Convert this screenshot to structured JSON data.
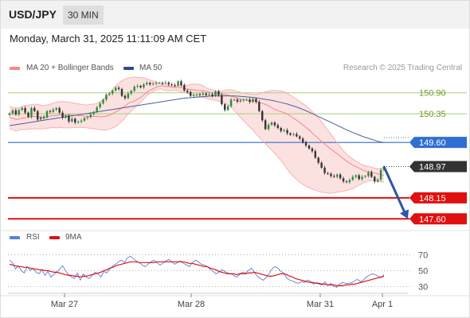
{
  "header": {
    "pair": "USD/JPY",
    "timeframe": "30 MIN"
  },
  "datetime": "Monday, March 31, 2025 11:11:09 AM CET",
  "legend": {
    "bb": {
      "label": "MA 20 + Bollinger Bands",
      "color": "#f08a8a"
    },
    "ma50": {
      "label": "MA 50",
      "color": "#2b4c8c"
    },
    "rsi": {
      "label": "RSI",
      "color": "#5b7fdd"
    },
    "rsi_ma": {
      "label": "9MA",
      "color": "#e01010"
    }
  },
  "credit": "Research © 2025 Trading Central",
  "chart_data": [
    {
      "type": "candlestick",
      "instrument": "USD/JPY",
      "interval": "30 MIN",
      "x_ticks": [
        "Mar 27",
        "Mar 28",
        "Mar 31",
        "Apr 1"
      ],
      "ylim": [
        147.44,
        151.31
      ],
      "levels": [
        {
          "value": 150.9,
          "label": "150.90",
          "kind": "resistance",
          "color": "#a8cf7a",
          "text_color": "#6b9c2a"
        },
        {
          "value": 150.35,
          "label": "150.35",
          "kind": "resistance",
          "color": "#a8cf7a",
          "text_color": "#6b9c2a"
        },
        {
          "value": 149.6,
          "label": "149.60",
          "kind": "pivot",
          "color": "#2f6fd1",
          "fill": "#2f6fd1"
        },
        {
          "value": 148.15,
          "label": "148.15",
          "kind": "support",
          "color": "#e01010",
          "fill": "#e01010"
        },
        {
          "value": 147.6,
          "label": "147.60",
          "kind": "support",
          "color": "#e01010",
          "fill": "#e01010"
        }
      ],
      "last_price": {
        "value": 148.97,
        "label": "148.97",
        "fill": "#333333"
      },
      "forecast_arrow": {
        "from": 148.97,
        "to": 147.6,
        "color": "#2c56a6"
      },
      "candle_colors": {
        "up": "#2e8b3a",
        "down": "#333333"
      },
      "price": [
        150.36,
        150.44,
        150.33,
        150.45,
        150.5,
        150.38,
        150.27,
        150.5,
        150.42,
        150.2,
        150.26,
        150.25,
        150.42,
        150.4,
        150.46,
        150.5,
        150.38,
        150.25,
        150.3,
        150.15,
        150.22,
        150.12,
        150.14,
        150.17,
        150.24,
        150.26,
        150.34,
        150.4,
        150.52,
        150.62,
        150.72,
        150.85,
        150.88,
        150.96,
        151.03,
        151.0,
        150.82,
        150.76,
        150.88,
        150.95,
        151.06,
        151.08,
        151.04,
        151.12,
        151.16,
        151.12,
        151.14,
        151.16,
        151.16,
        151.15,
        151.17,
        151.12,
        151.1,
        151.09,
        151.2,
        151.1,
        150.96,
        150.92,
        150.82,
        150.84,
        150.86,
        150.85,
        150.88,
        150.84,
        150.86,
        150.82,
        150.94,
        150.84,
        150.6,
        150.45,
        150.55,
        150.72,
        150.72,
        150.67,
        150.7,
        150.72,
        150.72,
        150.66,
        150.74,
        150.66,
        150.42,
        150.18,
        149.95,
        150.06,
        150.12,
        150.05,
        149.98,
        149.9,
        149.92,
        149.84,
        149.8,
        149.82,
        149.76,
        149.7,
        149.6,
        149.52,
        149.44,
        149.37,
        149.2,
        149.07,
        148.94,
        148.8,
        148.78,
        148.72,
        148.7,
        148.76,
        148.66,
        148.58,
        148.56,
        148.62,
        148.7,
        148.74,
        148.64,
        148.7,
        148.72,
        148.82,
        148.7,
        148.58,
        148.63,
        148.88,
        148.97
      ],
      "ma20": [
        150.26,
        150.23,
        150.2,
        150.22,
        150.24,
        150.25,
        150.26,
        150.28,
        150.28,
        150.26,
        150.26,
        150.27,
        150.29,
        150.3,
        150.31,
        150.33,
        150.32,
        150.32,
        150.32,
        150.31,
        150.31,
        150.3,
        150.29,
        150.28,
        150.28,
        150.28,
        150.28,
        150.27,
        150.28,
        150.3,
        150.34,
        150.39,
        150.44,
        150.5,
        150.56,
        150.63,
        150.66,
        150.7,
        150.75,
        150.81,
        150.89,
        150.96,
        151.0,
        151.04,
        151.07,
        151.09,
        151.06,
        151.06,
        151.04,
        151.04,
        151.04,
        151.02,
        151.0,
        150.99,
        150.98,
        150.96,
        150.96,
        150.95,
        150.93,
        150.91,
        150.89,
        150.88,
        150.87,
        150.86,
        150.84,
        150.81,
        150.79,
        150.76,
        150.73,
        150.71,
        150.7,
        150.69,
        150.68,
        150.66,
        150.63,
        150.6,
        150.56,
        150.51,
        150.46,
        150.43,
        150.4,
        150.37,
        150.32,
        150.26,
        150.2,
        150.14,
        150.07,
        150.0,
        149.93,
        149.84,
        149.76,
        149.68,
        149.6,
        149.53,
        149.45,
        149.39,
        149.32,
        149.25,
        149.18,
        149.11,
        149.05,
        149.0,
        148.96,
        148.91,
        148.87,
        148.84,
        148.83,
        148.81,
        148.78,
        148.76,
        148.74
      ],
      "bb_upper": [
        150.54,
        150.52,
        150.5,
        150.51,
        150.55,
        150.57,
        150.58,
        150.6,
        150.6,
        150.58,
        150.56,
        150.58,
        150.6,
        150.63,
        150.66,
        150.67,
        150.67,
        150.66,
        150.65,
        150.63,
        150.62,
        150.6,
        150.59,
        150.58,
        150.6,
        150.6,
        150.63,
        150.67,
        150.75,
        150.82,
        150.92,
        151.04,
        151.13,
        151.2,
        151.25,
        151.28,
        151.3,
        151.31,
        151.3,
        151.3,
        151.28,
        151.26,
        151.22,
        151.2,
        151.16,
        151.14,
        151.12,
        151.1,
        151.08,
        151.07,
        151.08,
        151.1,
        151.1,
        151.1,
        151.13,
        151.13,
        151.12,
        151.1,
        151.05,
        151.0,
        150.98,
        150.95,
        150.93,
        150.94,
        150.97,
        150.98,
        150.97,
        150.95,
        150.92,
        150.9,
        150.88,
        150.87,
        150.86,
        150.86,
        150.87,
        150.9,
        150.93,
        150.95,
        150.96,
        150.96,
        150.95,
        150.94,
        150.9,
        150.85,
        150.8,
        150.74,
        150.67,
        150.61,
        150.55,
        150.47,
        150.39,
        150.3,
        150.2,
        150.08,
        149.96,
        149.85,
        149.73,
        149.6,
        149.49,
        149.38,
        149.29,
        149.21,
        149.15,
        149.09,
        149.04,
        149.0,
        148.98,
        148.96,
        148.93,
        148.91,
        148.92,
        148.95
      ],
      "bb_lower": [
        149.97,
        149.93,
        149.9,
        149.93,
        149.94,
        149.94,
        149.95,
        149.96,
        149.96,
        149.95,
        149.96,
        149.97,
        149.98,
        149.99,
        149.98,
        149.99,
        149.98,
        149.98,
        149.98,
        149.99,
        149.99,
        149.99,
        149.99,
        149.98,
        149.97,
        149.96,
        149.95,
        149.93,
        149.92,
        149.93,
        149.96,
        150.0,
        150.05,
        150.13,
        150.22,
        150.33,
        150.42,
        150.5,
        150.58,
        150.66,
        150.76,
        150.85,
        150.91,
        150.96,
        150.99,
        151.0,
        150.96,
        150.95,
        150.96,
        150.96,
        150.95,
        150.93,
        150.91,
        150.88,
        150.85,
        150.82,
        150.8,
        150.78,
        150.76,
        150.74,
        150.72,
        150.7,
        150.68,
        150.65,
        150.62,
        150.58,
        150.5,
        150.41,
        150.3,
        150.2,
        150.11,
        150.02,
        149.93,
        149.83,
        149.74,
        149.64,
        149.55,
        149.46,
        149.37,
        149.28,
        149.18,
        149.07,
        148.94,
        148.82,
        148.72,
        148.64,
        148.56,
        148.5,
        148.45,
        148.41,
        148.37,
        148.34,
        148.31,
        148.29,
        148.28,
        148.27,
        148.28,
        148.3,
        148.31,
        148.33,
        148.34,
        148.37,
        148.4,
        148.45,
        148.5,
        148.55,
        148.58,
        148.6,
        148.6,
        148.58,
        148.57,
        148.56
      ],
      "ma50": [
        150.04,
        150.06,
        150.08,
        150.1,
        150.12,
        150.14,
        150.16,
        150.18,
        150.2,
        150.22,
        150.24,
        150.26,
        150.28,
        150.3,
        150.32,
        150.34,
        150.36,
        150.38,
        150.4,
        150.42,
        150.44,
        150.46,
        150.48,
        150.5,
        150.52,
        150.54,
        150.56,
        150.58,
        150.6,
        150.62,
        150.64,
        150.66,
        150.68,
        150.7,
        150.72,
        150.74,
        150.76,
        150.77,
        150.78,
        150.79,
        150.8,
        150.81,
        150.82,
        150.82,
        150.82,
        150.82,
        150.82,
        150.81,
        150.8,
        150.79,
        150.78,
        150.76,
        150.74,
        150.72,
        150.7,
        150.67,
        150.64,
        150.61,
        150.57,
        150.53,
        150.48,
        150.43,
        150.37,
        150.31,
        150.25,
        150.19,
        150.13,
        150.07,
        150.01,
        149.95,
        149.89,
        149.84,
        149.79,
        149.74,
        149.7,
        149.66,
        149.62,
        149.6
      ]
    },
    {
      "type": "line",
      "title": "RSI",
      "ylim": [
        22.4,
        78.3
      ],
      "y_ticks": [
        70,
        50,
        30
      ],
      "series": [
        {
          "name": "RSI",
          "color": "#5b7fdd",
          "values": [
            63,
            60,
            52,
            56,
            50,
            47,
            55,
            50,
            53,
            48,
            46,
            51,
            44,
            49,
            42,
            45,
            48,
            52,
            56,
            50,
            45,
            42,
            40,
            47,
            38,
            46,
            42,
            40,
            44,
            48,
            46,
            42,
            49,
            47,
            52,
            56,
            58,
            61,
            63,
            60,
            66,
            68,
            65,
            62,
            60,
            57,
            55,
            58,
            61,
            63,
            60,
            57,
            59,
            62,
            64,
            61,
            58,
            60,
            62,
            59,
            57,
            55,
            60,
            63,
            61,
            58,
            57,
            55,
            52,
            49,
            46,
            48,
            51,
            49,
            47,
            46,
            44,
            42,
            45,
            48,
            47,
            50,
            53,
            48,
            43,
            40,
            38,
            41,
            46,
            52,
            55,
            53,
            49,
            47,
            41,
            38,
            37,
            35,
            34,
            36,
            35,
            38,
            37,
            33,
            35,
            33,
            32,
            36,
            31,
            34,
            30,
            29,
            33,
            35,
            34,
            34,
            35,
            37,
            39,
            36,
            38,
            42,
            44,
            46,
            45,
            43,
            41,
            45
          ]
        },
        {
          "name": "9MA",
          "color": "#e01010",
          "values": [
            58,
            57,
            56,
            55,
            55,
            54,
            54,
            53,
            52,
            52,
            51,
            51,
            50,
            50,
            49,
            48,
            48,
            47,
            46,
            45,
            44,
            44,
            43,
            43,
            42,
            43,
            43,
            44,
            45,
            46,
            47,
            48,
            50,
            51,
            53,
            54,
            56,
            57,
            58,
            59,
            60,
            61,
            61,
            61,
            60,
            60,
            60,
            60,
            60,
            60,
            61,
            61,
            61,
            61,
            61,
            61,
            61,
            61,
            61,
            61,
            60,
            59,
            59,
            58,
            57,
            56,
            55,
            55,
            53,
            52,
            51,
            49,
            48,
            47,
            46,
            46,
            46,
            45,
            46,
            46,
            46,
            47,
            47,
            48,
            47,
            46,
            45,
            44,
            43,
            43,
            44,
            45,
            46,
            46,
            45,
            43,
            42,
            40,
            39,
            38,
            37,
            36,
            35,
            35,
            34,
            34,
            33,
            33,
            32,
            32,
            32,
            31,
            31,
            31,
            32,
            32,
            33,
            33,
            34,
            35,
            36,
            37,
            38,
            39,
            40,
            41,
            42,
            43
          ]
        }
      ]
    }
  ]
}
